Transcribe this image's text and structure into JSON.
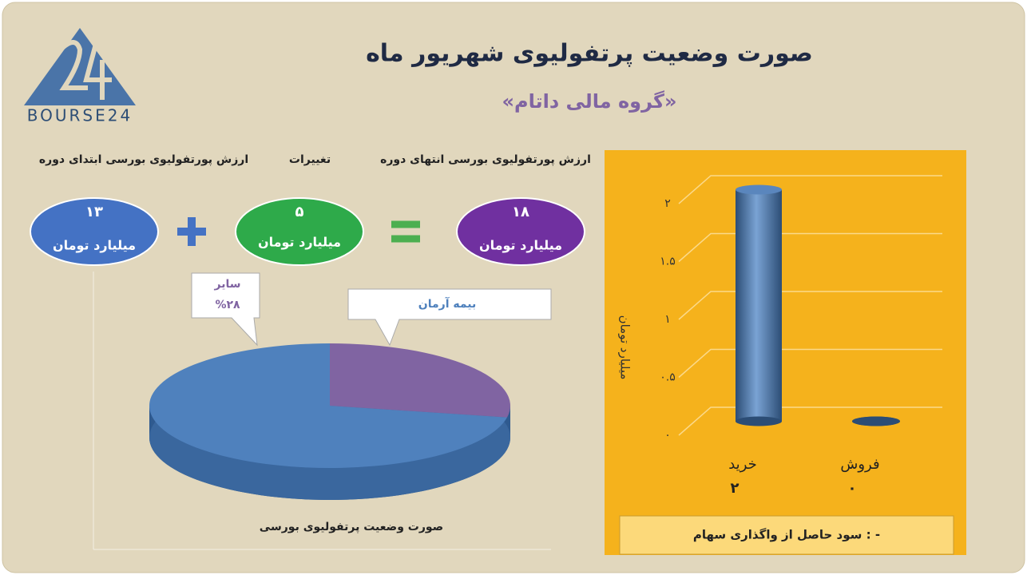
{
  "header": {
    "title": "صورت وضعیت پرتفولیوی شهریور ماه",
    "subtitle": "«گروه مالی داتام»",
    "logo": "BOURSE24"
  },
  "summary": [
    {
      "label": "ارزش پورتفولیوی بورسی ابتدای دوره",
      "value": "۱۳",
      "unit": "میلیارد تومان"
    },
    {
      "label": "تغییرات",
      "value": "۵",
      "unit": "میلیارد تومان"
    },
    {
      "label": "ارزش پورتفولیوی بورسی انتهای دوره",
      "value": "۱۸",
      "unit": "میلیارد تومان"
    }
  ],
  "chart_data": [
    {
      "type": "pie",
      "title": "صورت وضعیت پرتفولیوی بورسی",
      "categories": [
        "بیمه آرمان",
        "سایر"
      ],
      "values": [
        72,
        28
      ],
      "value_labels": [
        null,
        "%۲۸"
      ],
      "colors": [
        "#4f81bd",
        "#8064a2"
      ]
    },
    {
      "type": "bar",
      "ylabel": "میلیارد تومان",
      "categories": [
        "خرید",
        "فروش"
      ],
      "values": [
        2,
        0
      ],
      "value_labels": [
        "۲",
        "۰"
      ],
      "color": "#4f81bd",
      "ylim": [
        0,
        2
      ],
      "yticks": [
        {
          "value": 0,
          "label": "۰"
        },
        {
          "value": 0.5,
          "label": "۰.۵"
        },
        {
          "value": 1,
          "label": "۱"
        },
        {
          "value": 1.5,
          "label": "۱.۵"
        },
        {
          "value": 2,
          "label": "۲"
        }
      ],
      "grid": true,
      "note": "سود حاصل از واگذاری سهام : -"
    }
  ]
}
